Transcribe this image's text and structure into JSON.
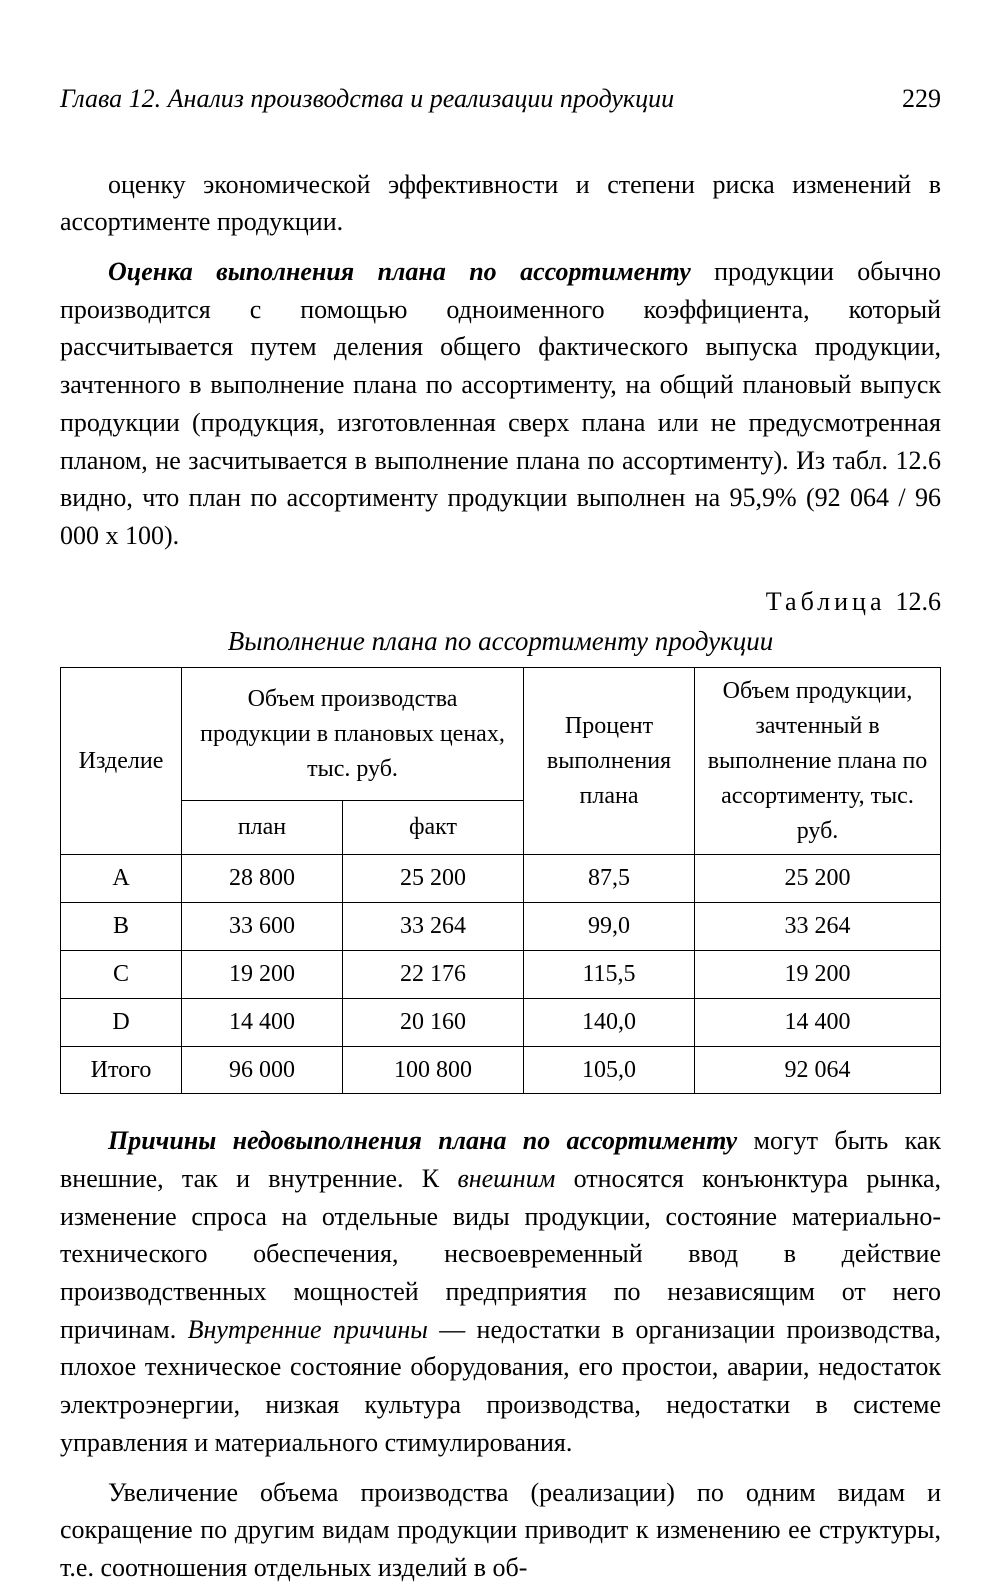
{
  "header": {
    "chapter": "Глава 12. Анализ производства и реализации продукции",
    "page_number": "229"
  },
  "para1": "оценку экономической эффективности и степени риска изменений в ассортименте продукции.",
  "para2_lead_bi": "Оценка выполнения плана по ассортименту",
  "para2_rest": " продукции обычно производится с помощью одноименного коэффициента, который рассчитывается путем деления общего фактического выпуска продукции, зачтенного в выполнение плана по ассортименту, на общий плановый выпуск продукции (продукция, изготовленная сверх плана или не предусмотренная планом, не засчитывается в выполнение плана по ассортименту). Из табл. 12.6 видно, что план по ассортименту продукции выполнен на 95,9% (92 064 / 96 000 х 100).",
  "table_label_word": "Таблица",
  "table_label_num": "12.6",
  "table_caption": "Выполнение плана по ассортименту продукции",
  "table": {
    "columns": {
      "c1": "Изделие",
      "c2_group": "Объем производства продукции в плановых ценах, тыс. руб.",
      "c2a": "план",
      "c2b": "факт",
      "c3": "Процент выполнения плана",
      "c4": "Объем продукции, зачтенный в выполнение плана по ассортименту, тыс. руб."
    },
    "rows": [
      {
        "prod": "A",
        "plan": "28 800",
        "fact": "25 200",
        "pct": "87,5",
        "credited": "25 200"
      },
      {
        "prod": "B",
        "plan": "33 600",
        "fact": "33 264",
        "pct": "99,0",
        "credited": "33 264"
      },
      {
        "prod": "C",
        "plan": "19 200",
        "fact": "22 176",
        "pct": "115,5",
        "credited": "19 200"
      },
      {
        "prod": "D",
        "plan": "14 400",
        "fact": "20 160",
        "pct": "140,0",
        "credited": "14 400"
      }
    ],
    "total": {
      "prod": "Итого",
      "plan": "96 000",
      "fact": "100 800",
      "pct": "105,0",
      "credited": "92 064"
    }
  },
  "para3_lead_bi": "Причины недовыполнения плана по ассортименту",
  "para3_part1": " могут быть как внешние, так и внутренние. К ",
  "para3_em1": "внешним",
  "para3_part2": " относятся конъюнктура рынка, изменение спроса на отдельные виды продукции, состояние материально-технического обеспечения, несвоевременный ввод в действие производственных мощностей предприятия по независящим от него причинам. ",
  "para3_em2": "Внутренние причины",
  "para3_part3": " — недостатки в организации производства, плохое техническое состояние оборудования, его простои, аварии, недостаток электроэнергии, низкая культура производства, недостатки в системе управления и материального стимулирования.",
  "para4": "Увеличение объема производства (реализации) по одним видам и сокращение по другим видам продукции приводит к изменению ее структуры, т.е. соотношения отдельных изделий в об-"
}
